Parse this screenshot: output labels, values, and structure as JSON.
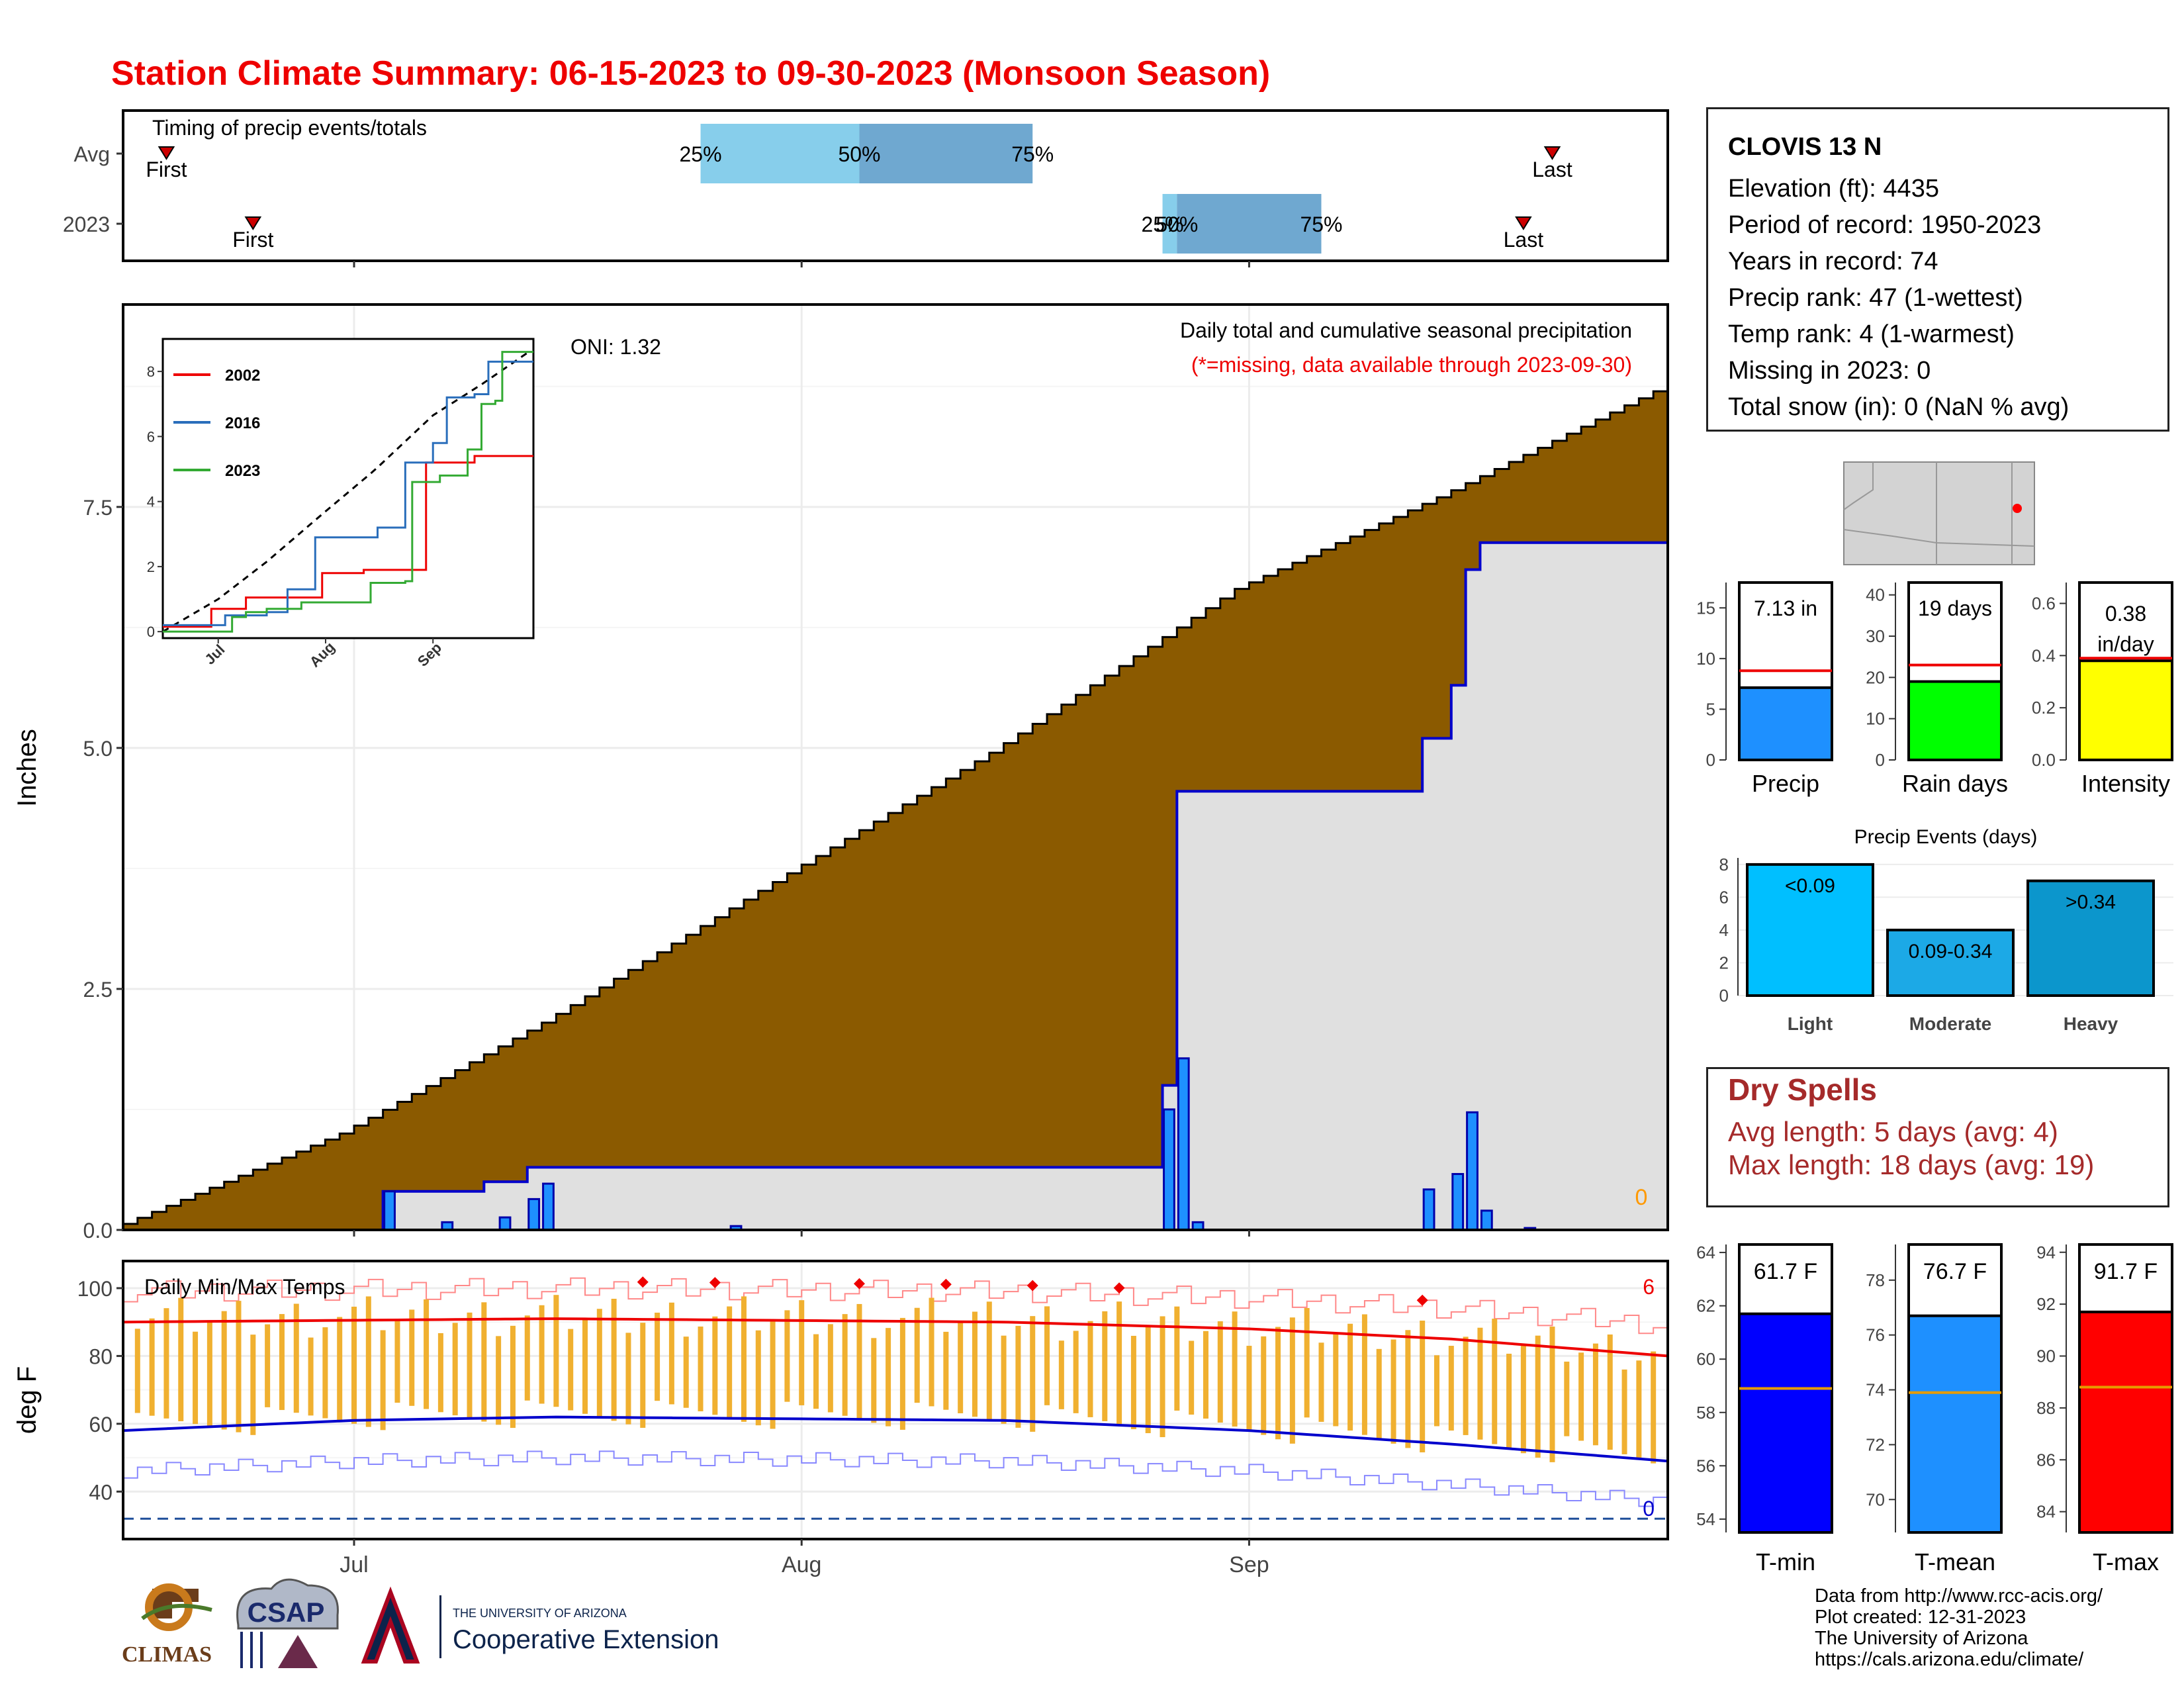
{
  "title": "Station Climate Summary: 06-15-2023 to 09-30-2023 (Monsoon Season)",
  "timing": {
    "label": "Timing of precip events/totals",
    "rows": [
      {
        "name": "Avg",
        "first": "06-18",
        "q25": "07-25",
        "q50": "08-05",
        "q75": "08-17",
        "last": "09-22"
      },
      {
        "name": "2023",
        "first": "06-24",
        "q25": "08-26",
        "q50": "08-27",
        "q75": "09-06",
        "last": "09-20"
      }
    ],
    "first_label": "First",
    "last_label": "Last",
    "q25_label": "25%",
    "q50_label": "50%",
    "q75_label": "75%"
  },
  "station": {
    "name": "CLOVIS 13 N",
    "lines": [
      "Elevation (ft): 4435",
      "Period of record: 1950-2023",
      "Years in record: 74",
      "Precip rank: 47 (1-wettest)",
      "Temp rank: 4 (1-warmest)",
      "Missing in 2023: 0",
      "Total snow (in): 0 (NaN % avg)"
    ]
  },
  "precip_panel": {
    "note1": "Daily total and cumulative seasonal precipitation",
    "note2": "(*=missing, data available through 2023-09-30)",
    "oni": "ONI: 1.32",
    "ylabel": "Inches",
    "missing_count": "0",
    "yticks": [
      "0.0",
      "2.5",
      "5.0",
      "7.5"
    ]
  },
  "inset": {
    "legend": [
      "2002",
      "2016",
      "2023"
    ],
    "yticks": [
      "0",
      "2",
      "4",
      "6",
      "8"
    ],
    "xticks": [
      "Jul",
      "Aug",
      "Sep"
    ]
  },
  "temp_panel": {
    "label": "Daily Min/Max Temps",
    "ylabel": "deg F",
    "yticks": [
      "40",
      "60",
      "80",
      "100"
    ],
    "record_count": "6",
    "low_count": "0"
  },
  "xaxis": {
    "ticks": [
      "Jul",
      "Aug",
      "Sep"
    ]
  },
  "summary_bars": [
    {
      "name": "Precip",
      "label": "7.13 in",
      "value": 7.13,
      "avg": 8.8,
      "color": "#1e90ff",
      "ymax": 17.5,
      "ticks": [
        "0",
        "5",
        "10",
        "15"
      ]
    },
    {
      "name": "Rain days",
      "label": "19 days",
      "value": 19,
      "avg": 23,
      "color": "#00ff00",
      "ymax": 43,
      "ticks": [
        "0",
        "10",
        "20",
        "30",
        "40"
      ]
    },
    {
      "name": "Intensity",
      "label": "0.38",
      "label2": "in/day",
      "value": 0.38,
      "avg": 0.39,
      "color": "#ffff00",
      "ymax": 0.68,
      "ticks": [
        "0.0",
        "0.2",
        "0.4",
        "0.6"
      ]
    }
  ],
  "events": {
    "title": "Precip Events (days)",
    "ticks": [
      "0",
      "2",
      "4",
      "6",
      "8"
    ],
    "bars": [
      {
        "name": "Light",
        "label": "<0.09",
        "value": 8,
        "color": "#00bfff"
      },
      {
        "name": "Moderate",
        "label": "0.09-0.34",
        "value": 4,
        "color": "#1ca9e6"
      },
      {
        "name": "Heavy",
        "label": ">0.34",
        "value": 7,
        "color": "#0c96cc"
      }
    ]
  },
  "dry_spells": {
    "title": "Dry Spells",
    "avg": "Avg length: 5 days (avg: 4)",
    "max": "Max length: 18 days (avg: 19)"
  },
  "temp_bars": [
    {
      "name": "T-min",
      "label": "61.7 F",
      "value": 61.7,
      "avg": 58.9,
      "color": "#0000ff",
      "ymin": 53.5,
      "ymax": 64.3,
      "ticks": [
        "54",
        "56",
        "58",
        "60",
        "62",
        "64"
      ]
    },
    {
      "name": "T-mean",
      "label": "76.7 F",
      "value": 76.7,
      "avg": 73.9,
      "color": "#1e90ff",
      "ymin": 68.8,
      "ymax": 79.3,
      "ticks": [
        "70",
        "72",
        "74",
        "76",
        "78"
      ]
    },
    {
      "name": "T-max",
      "label": "91.7 F",
      "value": 91.7,
      "avg": 88.8,
      "color": "#ff0000",
      "ymin": 83.2,
      "ymax": 94.3,
      "ticks": [
        "84",
        "86",
        "88",
        "90",
        "92",
        "94"
      ]
    }
  ],
  "footer": {
    "lines": [
      "Data from http://www.rcc-acis.org/",
      "Plot created: 12-31-2023",
      "The University of Arizona",
      "https://cals.arizona.edu/climate/"
    ]
  },
  "logos": {
    "climas": "CLIMAS",
    "csap": "CSAP",
    "ua_small": "THE UNIVERSITY OF ARIZONA",
    "ua_big": "Cooperative Extension"
  },
  "colors": {
    "cumulative": "#8b5a00",
    "cum2023_fill": "#e0e0e0",
    "daily": "#1e90ff",
    "avgmax": "#ee0000",
    "avgmin": "#0000cc",
    "tempbar": "#f0b030"
  },
  "chart_data": [
    {
      "type": "area",
      "title": "Daily total and cumulative seasonal precipitation",
      "ylabel": "Inches",
      "ylim": [
        0,
        9.6
      ],
      "x_start": "06-15",
      "x_end": "09-30",
      "series": [
        {
          "name": "Average cumulative",
          "x": [
            "06-15",
            "07-01",
            "07-15",
            "08-01",
            "08-15",
            "09-01",
            "09-15",
            "09-30"
          ],
          "values": [
            0.0,
            1.0,
            2.15,
            3.7,
            4.95,
            6.65,
            7.6,
            8.7
          ]
        },
        {
          "name": "2023 cumulative",
          "x": [
            "06-15",
            "07-01",
            "07-03",
            "07-10",
            "07-13",
            "08-26",
            "08-27",
            "09-13",
            "09-15",
            "09-16",
            "09-17",
            "09-30"
          ],
          "values": [
            0.0,
            0.0,
            0.4,
            0.5,
            0.65,
            1.5,
            4.55,
            5.1,
            5.65,
            6.85,
            7.13,
            7.13
          ]
        },
        {
          "name": "2023 daily",
          "x": [
            "07-03",
            "07-07",
            "07-11",
            "07-13",
            "07-14",
            "07-27",
            "08-26",
            "08-27",
            "08-28",
            "09-13",
            "09-15",
            "09-16",
            "09-17",
            "09-20"
          ],
          "values": [
            0.4,
            0.08,
            0.13,
            0.32,
            0.48,
            0.04,
            1.25,
            1.78,
            0.08,
            0.42,
            0.58,
            1.22,
            0.2,
            0.02
          ]
        }
      ]
    },
    {
      "type": "line",
      "title": "Daily Min/Max Temps",
      "ylabel": "deg F",
      "ylim": [
        26,
        108
      ],
      "series": [
        {
          "name": "Avg max",
          "x": [
            "06-15",
            "07-15",
            "08-15",
            "09-01",
            "09-15",
            "09-30"
          ],
          "values": [
            90,
            91,
            90,
            88,
            85,
            80
          ]
        },
        {
          "name": "Avg min",
          "x": [
            "06-15",
            "07-01",
            "07-15",
            "08-15",
            "09-01",
            "09-15",
            "09-30"
          ],
          "values": [
            58,
            61,
            62,
            61,
            58,
            54,
            49
          ]
        }
      ]
    }
  ]
}
